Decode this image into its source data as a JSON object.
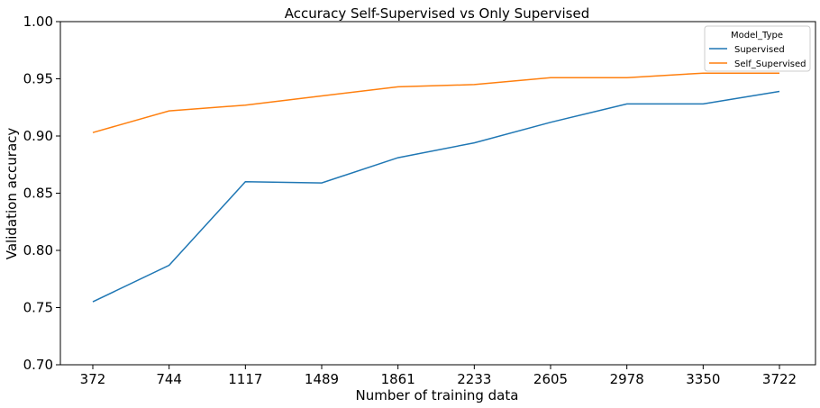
{
  "chart_data": {
    "type": "line",
    "title": "Accuracy Self-Supervised vs Only Supervised",
    "xlabel": "Number of training data",
    "ylabel": "Validation accuracy",
    "categories": [
      "372",
      "744",
      "1117",
      "1489",
      "1861",
      "2233",
      "2605",
      "2978",
      "3350",
      "3722"
    ],
    "ylim": [
      0.7,
      1.0
    ],
    "yticks": [
      "0.70",
      "0.75",
      "0.80",
      "0.85",
      "0.90",
      "0.95",
      "1.00"
    ],
    "grid": false,
    "legend": {
      "title": "Model_Type",
      "placement": "top-right"
    },
    "series": [
      {
        "name": "Supervised",
        "color": "#1f77b4",
        "values": [
          0.755,
          0.787,
          0.86,
          0.859,
          0.881,
          0.894,
          0.912,
          0.928,
          0.928,
          0.939
        ]
      },
      {
        "name": "Self_Supervised",
        "color": "#ff7f0e",
        "values": [
          0.903,
          0.922,
          0.927,
          0.935,
          0.943,
          0.945,
          0.951,
          0.951,
          0.955,
          0.955
        ]
      }
    ]
  }
}
